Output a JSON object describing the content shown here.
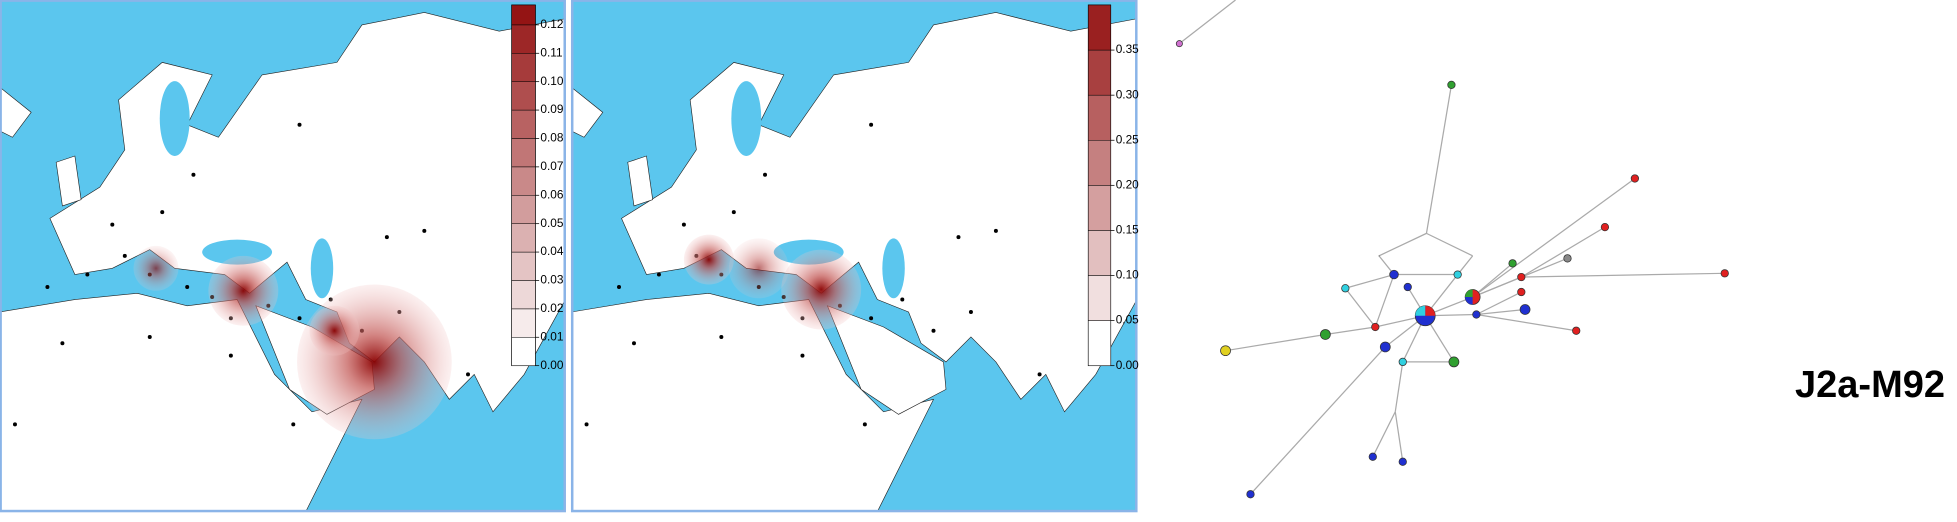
{
  "colorbars": [
    {
      "range": [
        0,
        0.127
      ],
      "ticks": [
        {
          "value": 0,
          "label": "0.00"
        },
        {
          "value": 0.01,
          "label": "0.01"
        },
        {
          "value": 0.02,
          "label": "0.02"
        },
        {
          "value": 0.03,
          "label": "0.03"
        },
        {
          "value": 0.04,
          "label": "0.04"
        },
        {
          "value": 0.05,
          "label": "0.05"
        },
        {
          "value": 0.06,
          "label": "0.06"
        },
        {
          "value": 0.07,
          "label": "0.07"
        },
        {
          "value": 0.08,
          "label": "0.08"
        },
        {
          "value": 0.09,
          "label": "0.09"
        },
        {
          "value": 0.1,
          "label": "0.10"
        },
        {
          "value": 0.11,
          "label": "0.11"
        },
        {
          "value": 0.12,
          "label": "0.12"
        }
      ]
    },
    {
      "range": [
        0,
        0.4
      ],
      "ticks": [
        {
          "value": 0,
          "label": "0.00"
        },
        {
          "value": 0.05,
          "label": "0.05"
        },
        {
          "value": 0.1,
          "label": "0.10"
        },
        {
          "value": 0.15,
          "label": "0.15"
        },
        {
          "value": 0.2,
          "label": "0.20"
        },
        {
          "value": 0.25,
          "label": "0.25"
        },
        {
          "value": 0.3,
          "label": "0.30"
        },
        {
          "value": 0.35,
          "label": "0.35"
        }
      ]
    }
  ],
  "label": "J2a-M92"
}
